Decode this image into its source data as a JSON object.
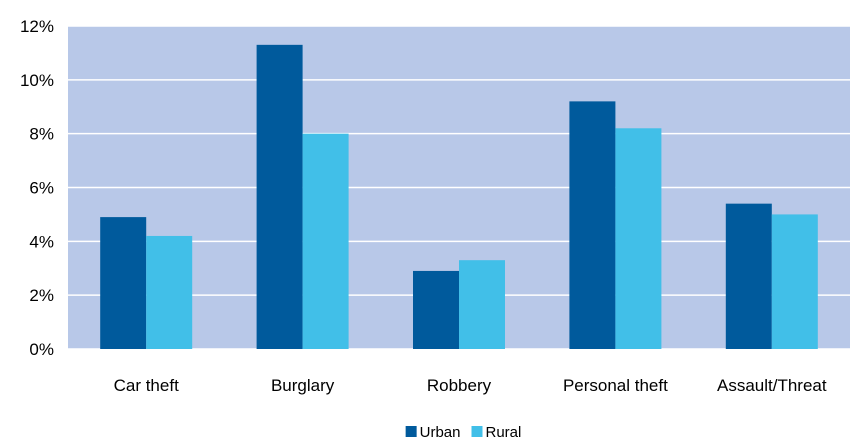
{
  "chart_data": {
    "type": "bar",
    "categories": [
      "Car theft",
      "Burglary",
      "Robbery",
      "Personal theft",
      "Assault/Threat"
    ],
    "series": [
      {
        "name": "Urban",
        "color": "#005A9C",
        "values": [
          4.9,
          11.3,
          2.9,
          9.2,
          5.4
        ]
      },
      {
        "name": "Rural",
        "color": "#41BFE8",
        "values": [
          4.2,
          8.0,
          3.3,
          8.2,
          5.0
        ]
      }
    ],
    "ylim": [
      0,
      12
    ],
    "yticks": [
      0,
      2,
      4,
      6,
      8,
      10,
      12
    ],
    "ytick_labels": [
      "0%",
      "2%",
      "4%",
      "6%",
      "8%",
      "10%",
      "12%"
    ],
    "grid": true,
    "plot_background": "#B8C8E8",
    "grid_color": "#FFFFFF",
    "legend_position": "bottom-center"
  }
}
